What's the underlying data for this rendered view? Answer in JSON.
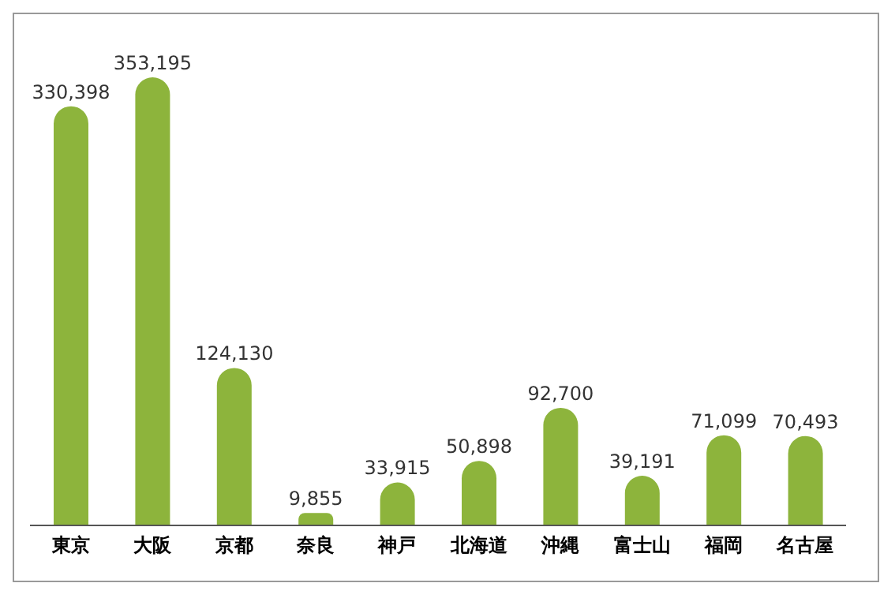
{
  "chart_data": {
    "type": "bar",
    "categories": [
      "東京",
      "大阪",
      "京都",
      "奈良",
      "神戸",
      "北海道",
      "沖縄",
      "富士山",
      "福岡",
      "名古屋"
    ],
    "values": [
      330398,
      353195,
      124130,
      9855,
      33915,
      50898,
      92700,
      39191,
      71099,
      70493
    ],
    "value_labels": [
      "330,398",
      "353,195",
      "124,130",
      "9,855",
      "33,915",
      "50,898",
      "92,700",
      "39,191",
      "71,099",
      "70,493"
    ],
    "color": "#8db43c"
  }
}
